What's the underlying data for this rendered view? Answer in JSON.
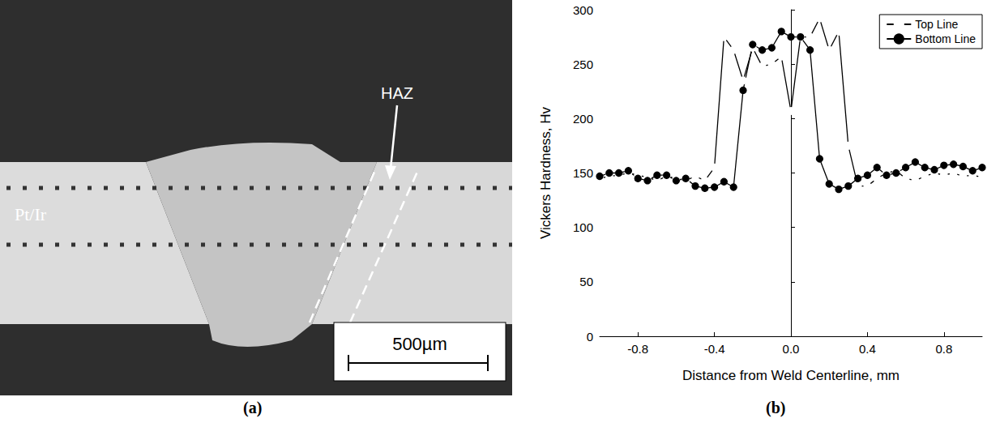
{
  "panel_a": {
    "label": "(a)",
    "material_label": "Pt/Ir",
    "zone_label": "HAZ",
    "scale_bar": "500µm"
  },
  "panel_b": {
    "label": "(b)"
  },
  "chart_data": {
    "type": "line",
    "x_label": "Distance from Weld Centerline, mm",
    "y_label": "Vickers Hardness, Hv",
    "x": [
      -1.0,
      -0.95,
      -0.9,
      -0.85,
      -0.8,
      -0.75,
      -0.7,
      -0.65,
      -0.6,
      -0.55,
      -0.5,
      -0.45,
      -0.4,
      -0.35,
      -0.3,
      -0.25,
      -0.2,
      -0.15,
      -0.1,
      -0.05,
      0.0,
      0.05,
      0.1,
      0.15,
      0.2,
      0.25,
      0.3,
      0.35,
      0.4,
      0.45,
      0.5,
      0.55,
      0.6,
      0.65,
      0.7,
      0.75,
      0.8,
      0.85,
      0.9,
      0.95,
      1.0
    ],
    "series": [
      {
        "name": "Top Line",
        "color": "#000000",
        "marker": "open_circle",
        "values": [
          145,
          147,
          148,
          150,
          148,
          146,
          143,
          147,
          145,
          143,
          147,
          143,
          155,
          275,
          263,
          235,
          265,
          248,
          250,
          257,
          207,
          275,
          275,
          292,
          263,
          280,
          175,
          138,
          138,
          145,
          150,
          152,
          145,
          143,
          147,
          150,
          148,
          150,
          147,
          148,
          146
        ]
      },
      {
        "name": "Bottom Line",
        "color": "#000000",
        "marker": "filled_circle",
        "values": [
          147,
          150,
          150,
          152,
          145,
          143,
          148,
          148,
          143,
          145,
          138,
          136,
          137,
          142,
          137,
          226,
          268,
          263,
          265,
          280,
          275,
          275,
          263,
          163,
          140,
          135,
          138,
          145,
          148,
          155,
          148,
          150,
          155,
          160,
          155,
          153,
          157,
          158,
          156,
          152,
          155
        ]
      }
    ],
    "xlim": [
      -1,
      1
    ],
    "xticks": [
      -0.8,
      -0.4,
      {
        "value": 0,
        "label": "0.0"
      },
      0.4,
      0.8
    ],
    "ylim": [
      0,
      300
    ],
    "yticks": [
      0,
      50,
      100,
      150,
      200,
      250,
      300
    ],
    "grid": false,
    "legend": "upper right"
  }
}
